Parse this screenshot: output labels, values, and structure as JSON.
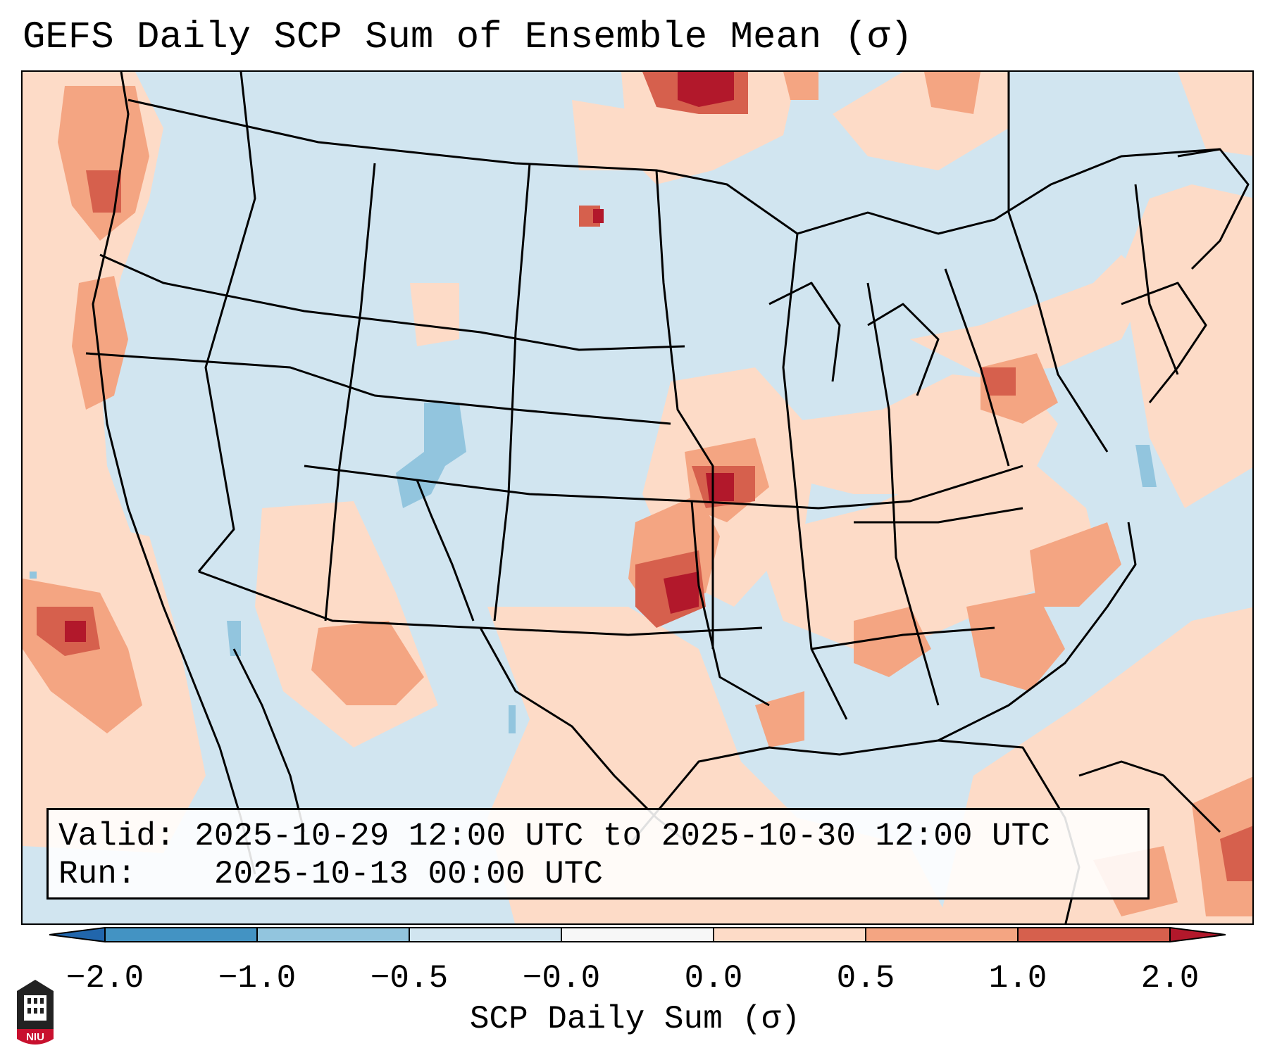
{
  "title": "GEFS Daily SCP Sum of Ensemble Mean (σ)",
  "info": {
    "valid_label": "Valid:",
    "valid_value": "2025-10-29 12:00 UTC to 2025-10-30 12:00 UTC",
    "run_label": "Run:",
    "run_value": "2025-10-13 00:00 UTC"
  },
  "colorbar": {
    "label": "SCP Daily Sum (σ)",
    "ticks": [
      "−2.0",
      "−1.0",
      "−0.5",
      "−0.0",
      "0.0",
      "0.5",
      "1.0",
      "2.0"
    ],
    "colors": [
      "#4393c3",
      "#92c5de",
      "#d1e5f0",
      "#f7f7f7",
      "#fddbc7",
      "#f4a582",
      "#d6604d"
    ],
    "extend_low_color": "#2166ac",
    "extend_high_color": "#b2182b"
  },
  "map": {
    "background_color": "#d1e5f0",
    "region": "Contiguous United States",
    "icons": {
      "logo": "niu-logo-icon"
    }
  },
  "logo": {
    "text": "NIU"
  }
}
